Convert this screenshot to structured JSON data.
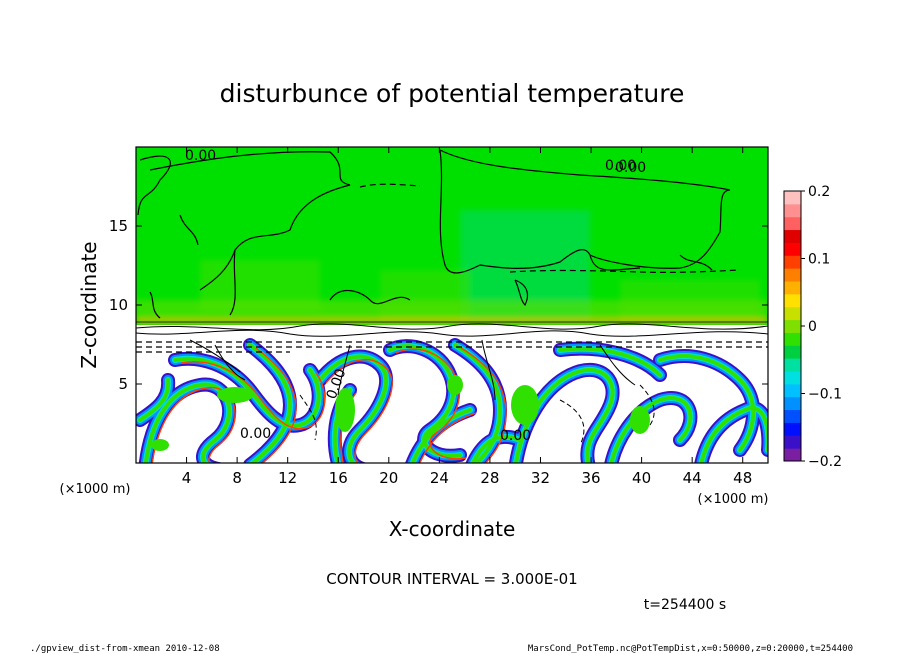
{
  "chart_data": {
    "type": "heatmap",
    "title": "disturbunce of potential temperature",
    "xlabel": "X-coordinate",
    "ylabel": "Z-coordinate",
    "x_unit_left": "(×1000 m)",
    "x_unit_right": "(×1000 m)",
    "xlim": [
      0,
      50
    ],
    "ylim": [
      0,
      20
    ],
    "x_ticks": [
      4,
      8,
      12,
      16,
      20,
      24,
      28,
      32,
      36,
      40,
      44,
      48
    ],
    "y_ticks": [
      5,
      10,
      15
    ],
    "contour_interval_text": "CONTOUR INTERVAL = 3.000E-01",
    "contour_labels": [
      "0.00",
      "0.00",
      "0.00",
      "0.00",
      "0.00",
      "0.00"
    ],
    "time_label": "t=254400 s",
    "colorbar": {
      "min": -0.2,
      "max": 0.2,
      "tick_values": [
        0.2,
        0.1,
        0,
        -0.1,
        -0.2
      ],
      "tick_labels": [
        "0.2",
        "0.1",
        "0",
        "−0.1",
        "−0.2"
      ],
      "colors": [
        "#7b1fa2",
        "#3a10c8",
        "#0010ff",
        "#0050ff",
        "#0090ff",
        "#00c0ff",
        "#00e0e0",
        "#00e0a0",
        "#00d040",
        "#30e000",
        "#7fe000",
        "#c8e000",
        "#ffe000",
        "#ffb000",
        "#ff8000",
        "#ff4000",
        "#ff0000",
        "#e00000",
        "#ff6060",
        "#ff9090",
        "#ffc0c0"
      ]
    },
    "field_summary": {
      "upper_region_value": 0,
      "upper_region_z_range": [
        9,
        20
      ],
      "lower_region_z_range": [
        0,
        9
      ]
    }
  },
  "footer": {
    "left": "./gpview_dist-from-xmean  2010-12-08",
    "right": "MarsCond_PotTemp.nc@PotTempDist,x=0:50000,z=0:20000,t=254400"
  }
}
